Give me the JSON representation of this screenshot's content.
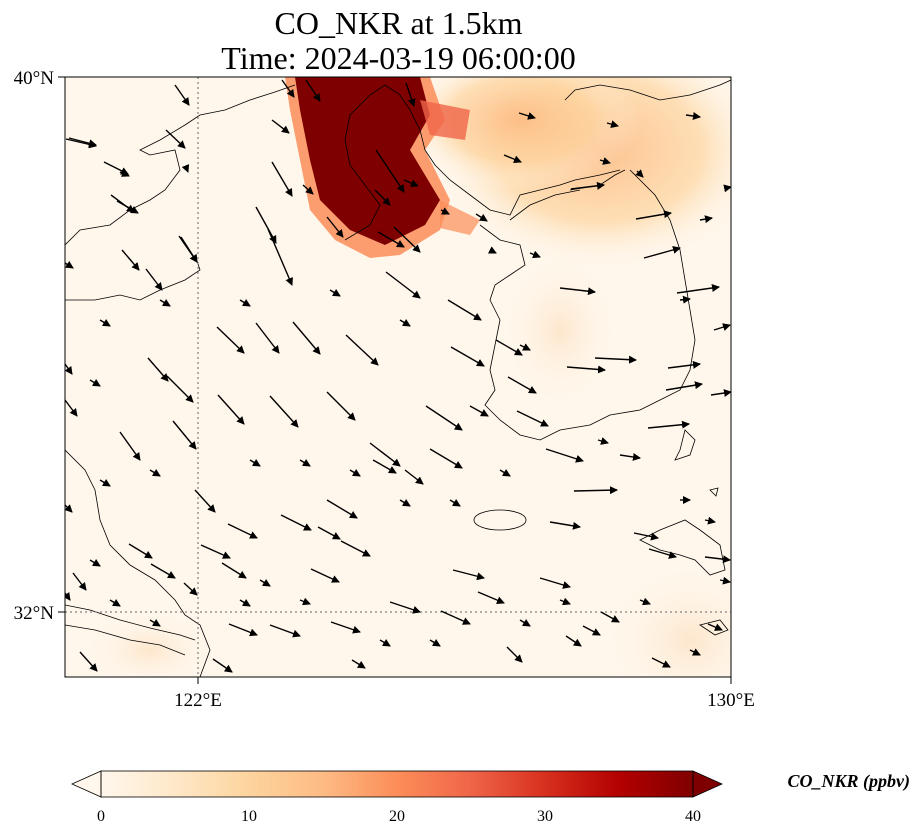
{
  "map": {
    "title_line1": "CO_NKR at 1.5km",
    "title_line2": "Time: 2024-03-19 06:00:00",
    "lat_ticks": [
      "40°N",
      "32°N"
    ],
    "lon_ticks": [
      "122°E",
      "130°E"
    ],
    "extent": {
      "lon_min": 120,
      "lon_max": 130,
      "lat_min": 31,
      "lat_max": 40
    },
    "gridlines": {
      "lon": [
        122
      ],
      "lat": [
        32
      ],
      "style": "dotted"
    }
  },
  "colorbar": {
    "label": "CO_NKR (ppbv)",
    "ticks": [
      "0",
      "10",
      "20",
      "30",
      "40"
    ],
    "min": 0,
    "max": 40,
    "colormap": "OrRd",
    "extend": "both",
    "colors": [
      "#fff7ec",
      "#fee8c8",
      "#fdd49e",
      "#fdbb84",
      "#fc8d59",
      "#ef6548",
      "#d7301f",
      "#b30000",
      "#7f0000"
    ]
  },
  "wind_vector_count": 140
}
